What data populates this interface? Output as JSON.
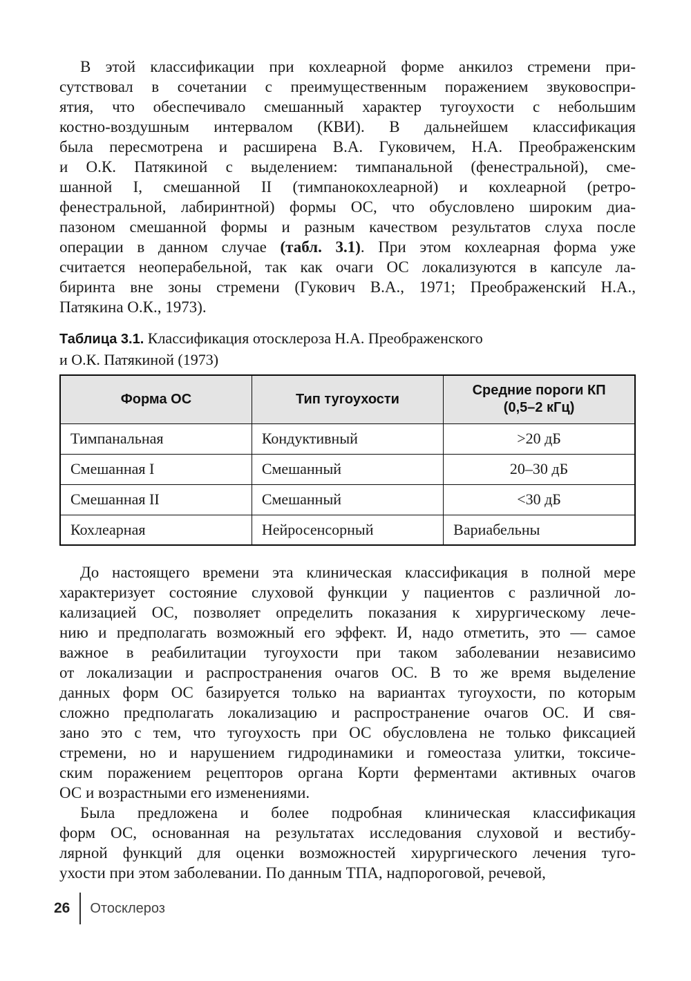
{
  "document": {
    "footer": {
      "page_number": "26",
      "running_title": "Отосклероз"
    }
  },
  "colors": {
    "page_background": "#ffffff",
    "text": "#1b1b1b",
    "table_header_background": "#e4e4e4",
    "table_border": "#0a0a0a",
    "footer_text": "#414141"
  },
  "body": {
    "paragraphs": [
      {
        "indent": true,
        "bold_fragment": "(табл. 3.1)",
        "lines": [
          "В этой классификации при кохлеарной форме анкилоз стремени при-",
          "сутствовал в сочетании с преимущественным поражением звуковоспри-",
          "ятия, что обеспечивало смешанный характер тугоухости с небольшим",
          "костно-воздушным интервалом (КВИ). В дальнейшем классификация",
          "была пересмотрена и расширена В.А. Гуковичем, Н.А. Преображенским",
          "и О.К. Патякиной с выделением: тимпанальной (фенестральной), сме-",
          "шанной I, смешанной II (тимпанокохлеарной) и кохлеарной (ретро-",
          "фенестральной, лабиринтной) формы ОС, что обусловлено широким диа-",
          "пазоном смешанной формы и разным качеством результатов слуха после",
          "операции в данном случае (табл. 3.1). При этом кохлеарная форма уже",
          "считается неоперабельной, так как очаги ОС локализуются в капсуле ла-",
          "биринта вне зоны стремени (Гукович В.А., 1971; Преображенский Н.А.,",
          "Патякина О.К., 1973)."
        ]
      },
      {
        "indent": true,
        "lines": [
          "До настоящего времени эта клиническая классификация в полной мере",
          "характеризует состояние слуховой функции у пациентов с различной ло-",
          "кализацией ОС, позволяет определить показания к хирургическому лече-",
          "нию и предполагать возможный его эффект. И, надо отметить, это — самое",
          "важное в реабилитации тугоухости при таком заболевании независимо",
          "от локализации и распространения очагов ОС. В то же время выделение",
          "данных форм ОС базируется только на вариантах тугоухости, по которым",
          "сложно предполагать локализацию и распространение очагов ОС. И свя-",
          "зано это с тем, что тугоухость при ОС обусловлена не только фиксацией",
          "стремени, но и нарушением гидродинамики и гомеостаза улитки, токсиче-",
          "ским поражением рецепторов органа Корти ферментами активных очагов",
          "ОС и возрастными его изменениями."
        ]
      },
      {
        "indent": true,
        "lines": [
          "Была предложена и более подробная клиническая классификация",
          "форм ОС, основанная на результатах исследования слуховой и вестибу-",
          "лярной функций для оценки возможностей хирургического лечения туго-",
          "ухости при этом заболевании. По данным ТПА, надпороговой, речевой,"
        ]
      }
    ],
    "caption": {
      "bold_prefix": "Таблица 3.1.",
      "lines": [
        "Таблица 3.1. Классификация отосклероза Н.А. Преображенского",
        "и О.К. Патякиной (1973)"
      ]
    },
    "table": {
      "headers": [
        "Форма ОС",
        "Тип тугоухости",
        "Средние пороги КП\n(0,5–2 кГц)"
      ],
      "rows": [
        [
          "Тимпанальная",
          "Кондуктивный",
          ">20 дБ"
        ],
        [
          "Смешанная I",
          "Смешанный",
          "20–30 дБ"
        ],
        [
          "Смешанная II",
          "Смешанный",
          "<30 дБ"
        ],
        [
          "Кохлеарная",
          "Нейросенсорный",
          "Вариабельны"
        ]
      ],
      "last_col_align": [
        "center",
        "center",
        "center",
        "left"
      ]
    }
  }
}
